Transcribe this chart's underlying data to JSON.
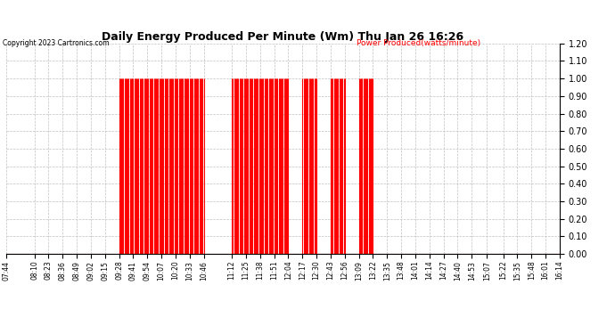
{
  "title": "Daily Energy Produced Per Minute (Wm) Thu Jan 26 16:26",
  "copyright": "Copyright 2023 Cartronics.com",
  "legend_label": "Power Produced(watts/minute)",
  "ylim": [
    0.0,
    1.2
  ],
  "yticks": [
    0.0,
    0.1,
    0.2,
    0.3,
    0.4,
    0.5,
    0.6,
    0.7,
    0.8,
    0.9,
    1.0,
    1.1,
    1.2
  ],
  "bar_color": "#ff0000",
  "background_color": "#ffffff",
  "grid_color": "#c0c0c0",
  "title_color": "#000000",
  "copyright_color": "#000000",
  "legend_color": "#ff0000",
  "x_start_time": "07:44",
  "x_end_time": "16:14",
  "active_segments": [
    [
      "09:28",
      "10:46"
    ],
    [
      "11:12",
      "12:04"
    ],
    [
      "12:17",
      "12:30"
    ],
    [
      "12:43",
      "12:56"
    ],
    [
      "13:09",
      "13:22"
    ]
  ],
  "tick_labels": [
    "07:44",
    "08:10",
    "08:23",
    "08:36",
    "08:49",
    "09:02",
    "09:15",
    "09:28",
    "09:41",
    "09:54",
    "10:07",
    "10:20",
    "10:33",
    "10:46",
    "11:12",
    "11:25",
    "11:38",
    "11:51",
    "12:04",
    "12:17",
    "12:30",
    "12:43",
    "12:56",
    "13:09",
    "13:22",
    "13:35",
    "13:48",
    "14:01",
    "14:14",
    "14:27",
    "14:40",
    "14:53",
    "15:07",
    "15:22",
    "15:35",
    "15:48",
    "16:01",
    "16:14"
  ]
}
